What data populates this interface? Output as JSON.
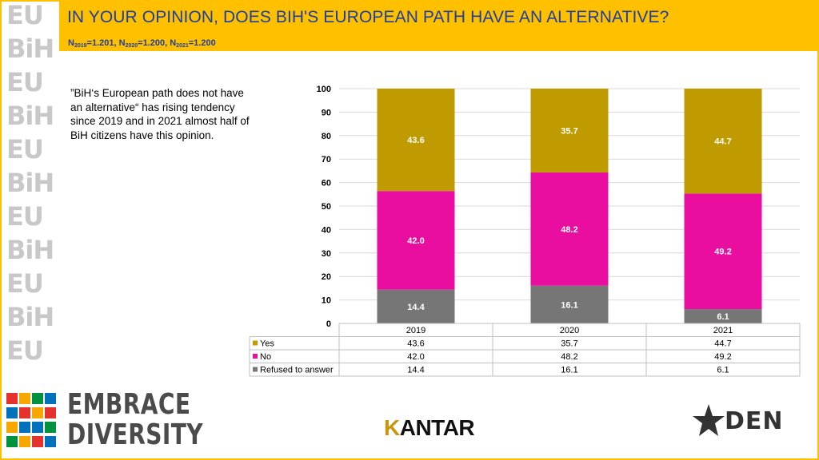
{
  "header": {
    "title": "IN YOUR OPINION, DOES BIH'S EUROPEAN PATH HAVE AN ALTERNATIVE?",
    "sample": [
      {
        "n": "N",
        "year": "2019",
        "value": "=1.201, "
      },
      {
        "n": "N",
        "year": "2020",
        "value": "=1.200, "
      },
      {
        "n": "N",
        "year": "2021",
        "value": "=1.200"
      }
    ]
  },
  "note": "”BiH‘s European path does not have an alternative“ has rising tendency since 2019 and in 2021 almost half of BiH citizens have this opinion.",
  "colors": {
    "yes": "#bf9b00",
    "no": "#e90e9f",
    "refused": "#767676",
    "accent": "#ffc000",
    "title": "#1f3e9e"
  },
  "chart_data": {
    "type": "bar",
    "stacked": true,
    "categories": [
      "2019",
      "2020",
      "2021"
    ],
    "series": [
      {
        "name": "Refused to answer",
        "values": [
          14.4,
          16.1,
          6.1
        ],
        "label_text": [
          "14.4",
          "16.1",
          "6.1"
        ]
      },
      {
        "name": "No",
        "values": [
          42.0,
          48.2,
          49.2
        ],
        "label_text": [
          "42.0",
          "48.2",
          "49.2"
        ]
      },
      {
        "name": "Yes",
        "values": [
          43.6,
          35.7,
          44.7
        ],
        "label_text": [
          "43.6",
          "35.7",
          "44.7"
        ]
      }
    ],
    "table_order": [
      "Yes",
      "No",
      "Refused to answer"
    ],
    "yticks": [
      "0",
      "10",
      "20",
      "30",
      "40",
      "50",
      "60",
      "70",
      "80",
      "90",
      "100"
    ],
    "ylim": [
      0,
      100
    ],
    "grid": true
  },
  "logos": {
    "embrace": [
      "EMBRACE",
      "DIVERSITY"
    ],
    "kantar": [
      "K",
      "ANTAR"
    ],
    "den": "DEN"
  }
}
